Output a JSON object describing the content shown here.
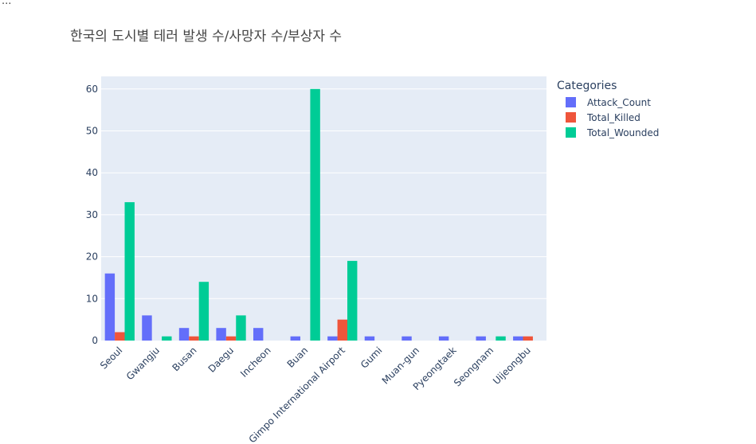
{
  "page": {
    "ellipsis": "..."
  },
  "chart_data": {
    "type": "bar",
    "title": "한국의 도시별 테러 발생 수/사망자 수/부상자 수",
    "xlabel": "",
    "ylabel": "",
    "ylim": [
      0,
      63
    ],
    "yticks": [
      0,
      10,
      20,
      30,
      40,
      50,
      60
    ],
    "grid": true,
    "barmode": "group",
    "categories": [
      "Seoul",
      "Gwangju",
      "Busan",
      "Daegu",
      "Incheon",
      "Buan",
      "Gimpo International Airport",
      "Gumi",
      "Muan-gun",
      "Pyeongtaek",
      "Seongnam",
      "Uijeongbu"
    ],
    "series": [
      {
        "name": "Attack_Count",
        "color": "#636efa",
        "values": [
          16,
          6,
          3,
          3,
          3,
          1,
          1,
          1,
          1,
          1,
          1,
          1
        ]
      },
      {
        "name": "Total_Killed",
        "color": "#ef553b",
        "values": [
          2,
          0,
          1,
          1,
          0,
          0,
          5,
          0,
          0,
          0,
          0,
          1
        ]
      },
      {
        "name": "Total_Wounded",
        "color": "#00cc96",
        "values": [
          33,
          1,
          14,
          6,
          0,
          60,
          19,
          0,
          0,
          0,
          1,
          0
        ]
      }
    ],
    "legend": {
      "title": "Categories",
      "position": "right"
    },
    "plot_bg": "#e5ecf6"
  }
}
